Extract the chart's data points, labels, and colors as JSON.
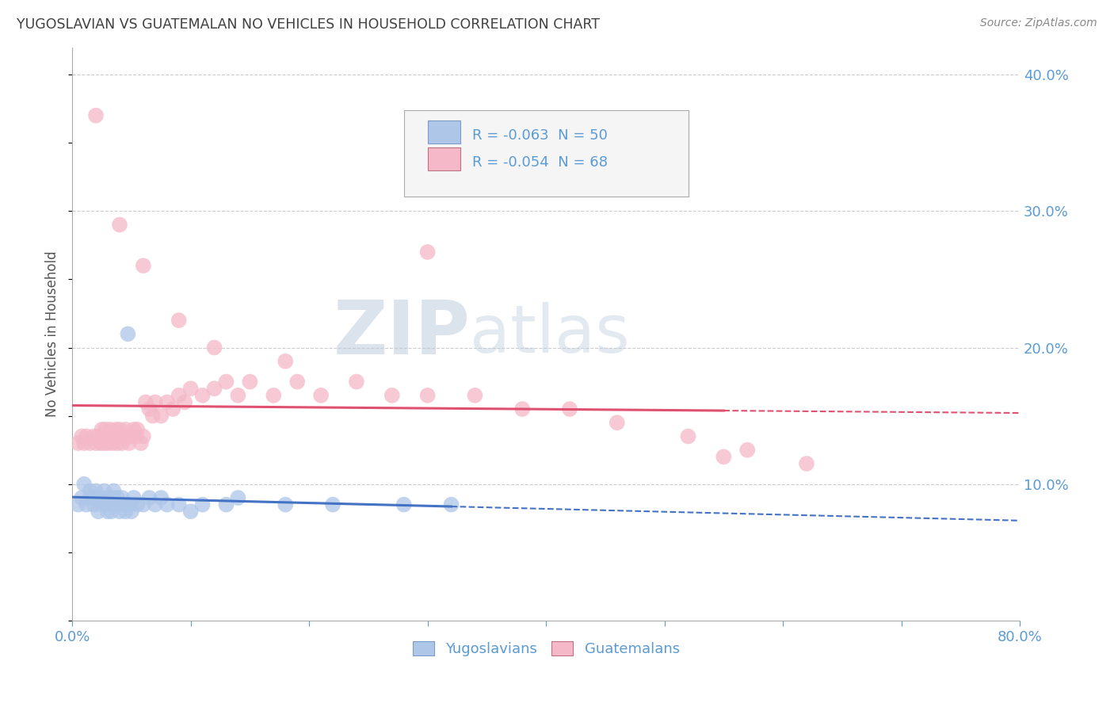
{
  "title": "YUGOSLAVIAN VS GUATEMALAN NO VEHICLES IN HOUSEHOLD CORRELATION CHART",
  "source": "Source: ZipAtlas.com",
  "ylabel": "No Vehicles in Household",
  "xlim": [
    0.0,
    0.8
  ],
  "ylim": [
    0.0,
    0.42
  ],
  "x_ticks": [
    0.0,
    0.1,
    0.2,
    0.3,
    0.4,
    0.5,
    0.6,
    0.7,
    0.8
  ],
  "x_tick_labels": [
    "0.0%",
    "",
    "",
    "",
    "",
    "",
    "",
    "",
    "80.0%"
  ],
  "y_ticks": [
    0.0,
    0.1,
    0.2,
    0.3,
    0.4
  ],
  "y_tick_labels_right": [
    "",
    "10.0%",
    "20.0%",
    "30.0%",
    "40.0%"
  ],
  "bg_color": "#ffffff",
  "grid_color": "#cccccc",
  "legend_R1": "R = -0.063",
  "legend_N1": "N = 50",
  "legend_R2": "R = -0.054",
  "legend_N2": "N = 68",
  "yugoslavian_color": "#aec6e8",
  "guatemalan_color": "#f4b8c8",
  "trend_color_yugo": "#4472c4",
  "trend_color_guate": "#e05070",
  "title_color": "#404040",
  "tick_color": "#5b9bd5",
  "legend_text_color": "#5b9bd5",
  "legend_label_color": "#333333",
  "watermark_color": "#ccd8ea",
  "yugo_x": [
    0.005,
    0.008,
    0.01,
    0.012,
    0.015,
    0.015,
    0.018,
    0.02,
    0.02,
    0.022,
    0.022,
    0.025,
    0.025,
    0.027,
    0.028,
    0.03,
    0.03,
    0.03,
    0.032,
    0.033,
    0.034,
    0.035,
    0.035,
    0.037,
    0.038,
    0.04,
    0.04,
    0.042,
    0.043,
    0.045,
    0.045,
    0.047,
    0.048,
    0.05,
    0.052,
    0.055,
    0.06,
    0.065,
    0.07,
    0.075,
    0.08,
    0.09,
    0.1,
    0.11,
    0.13,
    0.14,
    0.18,
    0.22,
    0.28,
    0.32
  ],
  "yugo_y": [
    0.085,
    0.09,
    0.1,
    0.085,
    0.09,
    0.095,
    0.085,
    0.09,
    0.095,
    0.08,
    0.09,
    0.085,
    0.09,
    0.095,
    0.085,
    0.08,
    0.085,
    0.09,
    0.085,
    0.08,
    0.085,
    0.09,
    0.095,
    0.085,
    0.09,
    0.08,
    0.085,
    0.09,
    0.085,
    0.08,
    0.085,
    0.21,
    0.085,
    0.08,
    0.09,
    0.085,
    0.085,
    0.09,
    0.085,
    0.09,
    0.085,
    0.085,
    0.08,
    0.085,
    0.085,
    0.09,
    0.085,
    0.085,
    0.085,
    0.085
  ],
  "guate_x": [
    0.005,
    0.008,
    0.01,
    0.012,
    0.015,
    0.018,
    0.02,
    0.022,
    0.024,
    0.025,
    0.027,
    0.028,
    0.03,
    0.03,
    0.032,
    0.034,
    0.035,
    0.037,
    0.038,
    0.04,
    0.04,
    0.042,
    0.044,
    0.045,
    0.047,
    0.048,
    0.05,
    0.052,
    0.054,
    0.055,
    0.058,
    0.06,
    0.062,
    0.065,
    0.068,
    0.07,
    0.075,
    0.08,
    0.085,
    0.09,
    0.095,
    0.1,
    0.11,
    0.12,
    0.13,
    0.14,
    0.15,
    0.17,
    0.19,
    0.21,
    0.24,
    0.27,
    0.3,
    0.34,
    0.38,
    0.42,
    0.46,
    0.52,
    0.57,
    0.62,
    0.02,
    0.04,
    0.06,
    0.09,
    0.12,
    0.18,
    0.3,
    0.55
  ],
  "guate_y": [
    0.13,
    0.135,
    0.13,
    0.135,
    0.13,
    0.135,
    0.13,
    0.135,
    0.13,
    0.14,
    0.13,
    0.14,
    0.13,
    0.135,
    0.14,
    0.13,
    0.135,
    0.14,
    0.13,
    0.135,
    0.14,
    0.13,
    0.135,
    0.14,
    0.135,
    0.13,
    0.135,
    0.14,
    0.135,
    0.14,
    0.13,
    0.135,
    0.16,
    0.155,
    0.15,
    0.16,
    0.15,
    0.16,
    0.155,
    0.165,
    0.16,
    0.17,
    0.165,
    0.17,
    0.175,
    0.165,
    0.175,
    0.165,
    0.175,
    0.165,
    0.175,
    0.165,
    0.165,
    0.165,
    0.155,
    0.155,
    0.145,
    0.135,
    0.125,
    0.115,
    0.37,
    0.29,
    0.26,
    0.22,
    0.2,
    0.19,
    0.27,
    0.12
  ]
}
